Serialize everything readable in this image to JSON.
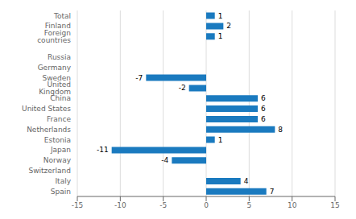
{
  "chart_data": {
    "type": "bar",
    "orientation": "horizontal",
    "categories": [
      "Total",
      "Finland",
      "Foreign countries",
      null,
      "Russia",
      "Germany",
      "Sweden",
      "United Kingdom",
      "China",
      "United States",
      "France",
      "Netherlands",
      "Estonia",
      "Japan",
      "Norway",
      "Switzerland",
      "Italy",
      "Spain"
    ],
    "values": [
      1,
      2,
      1,
      null,
      0,
      0,
      -7,
      -2,
      6,
      6,
      6,
      8,
      1,
      -11,
      -4,
      0,
      4,
      7
    ],
    "color": "#1a7abf",
    "xlim": [
      -15,
      15
    ],
    "xticks": [
      -15,
      -10,
      -5,
      0,
      5,
      10,
      15
    ],
    "grid": true,
    "data_labels": true
  }
}
